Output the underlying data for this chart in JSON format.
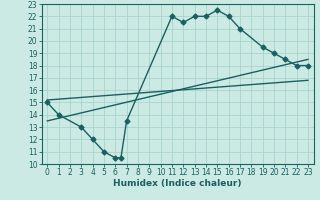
{
  "xlabel": "Humidex (Indice chaleur)",
  "bg_color": "#cceae4",
  "grid_color": "#a8d4cc",
  "line_color": "#1a6060",
  "xlim": [
    -0.5,
    23.5
  ],
  "ylim": [
    10,
    23
  ],
  "xticks": [
    0,
    1,
    2,
    3,
    4,
    5,
    6,
    7,
    8,
    9,
    10,
    11,
    12,
    13,
    14,
    15,
    16,
    17,
    18,
    19,
    20,
    21,
    22,
    23
  ],
  "yticks": [
    10,
    11,
    12,
    13,
    14,
    15,
    16,
    17,
    18,
    19,
    20,
    21,
    22,
    23
  ],
  "line1_x": [
    0,
    1,
    3,
    4,
    5,
    6,
    6.5,
    7,
    11,
    12,
    13,
    14,
    15,
    16,
    17,
    19,
    20,
    21,
    22,
    23
  ],
  "line1_y": [
    15,
    14,
    13,
    12,
    11,
    10.5,
    10.5,
    13.5,
    22,
    21.5,
    22,
    22,
    22.5,
    22,
    21,
    19.5,
    19,
    18.5,
    18,
    18
  ],
  "line2_x": [
    0,
    23
  ],
  "line2_y": [
    13.5,
    18.5
  ],
  "line3_x": [
    0,
    23
  ],
  "line3_y": [
    15.2,
    16.8
  ],
  "marker": "D",
  "markersize": 2.5,
  "linewidth": 1.0,
  "tick_fontsize": 5.5,
  "xlabel_fontsize": 6.5
}
